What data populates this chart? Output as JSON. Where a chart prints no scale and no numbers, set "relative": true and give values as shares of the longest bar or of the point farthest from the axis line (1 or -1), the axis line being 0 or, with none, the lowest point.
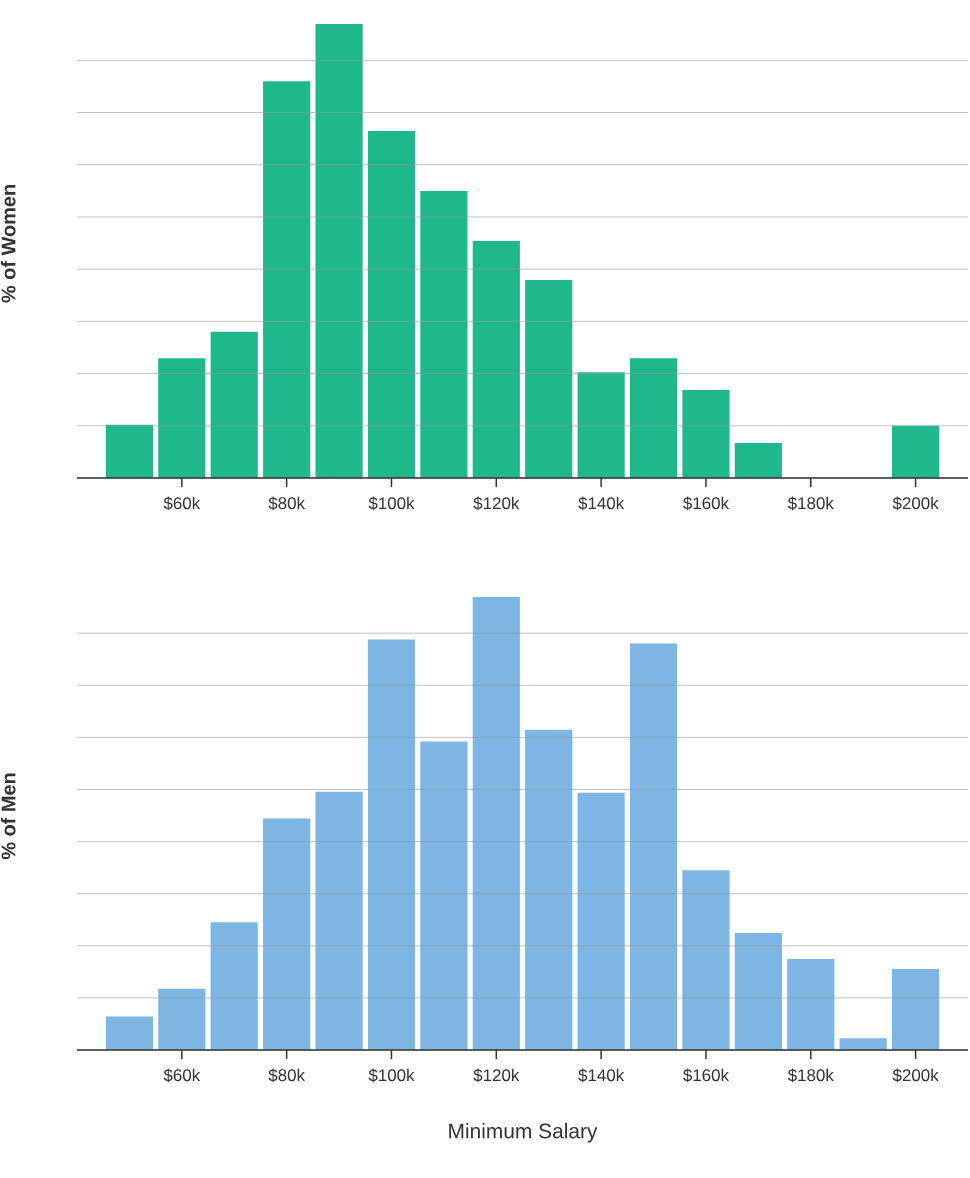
{
  "chart_data": [
    {
      "type": "bar",
      "ylabel": "% of Women",
      "relative": true,
      "grid": "y",
      "color": "#1fb88b",
      "x": [
        50,
        60,
        70,
        80,
        90,
        100,
        110,
        120,
        130,
        140,
        150,
        160,
        170,
        180,
        190,
        200
      ],
      "values": [
        0.117,
        0.264,
        0.322,
        0.874,
        1,
        0.764,
        0.632,
        0.522,
        0.436,
        0.233,
        0.264,
        0.194,
        0.077,
        0,
        0,
        0.115
      ],
      "xlim": [
        40,
        210
      ],
      "xticks": [
        {
          "value": 60,
          "label": "$60k"
        },
        {
          "value": 80,
          "label": "$80k"
        },
        {
          "value": 100,
          "label": "$100k"
        },
        {
          "value": 120,
          "label": "$120k"
        },
        {
          "value": 140,
          "label": "$140k"
        },
        {
          "value": 160,
          "label": "$160k"
        },
        {
          "value": 180,
          "label": "$180k"
        },
        {
          "value": 200,
          "label": "$200k"
        }
      ]
    },
    {
      "type": "bar",
      "ylabel": "% of Men",
      "xlabel": "Minimum Salary",
      "relative": true,
      "grid": "y",
      "color": "#7db6e2",
      "x": [
        50,
        60,
        70,
        80,
        90,
        100,
        110,
        120,
        130,
        140,
        150,
        160,
        170,
        180,
        190,
        200
      ],
      "values": [
        0.074,
        0.135,
        0.282,
        0.511,
        0.57,
        0.906,
        0.681,
        1,
        0.707,
        0.568,
        0.897,
        0.397,
        0.258,
        0.201,
        0.026,
        0.179
      ],
      "xlim": [
        40,
        210
      ],
      "xticks": [
        {
          "value": 60,
          "label": "$60k"
        },
        {
          "value": 80,
          "label": "$80k"
        },
        {
          "value": 100,
          "label": "$100k"
        },
        {
          "value": 120,
          "label": "$120k"
        },
        {
          "value": 140,
          "label": "$140k"
        },
        {
          "value": 160,
          "label": "$160k"
        },
        {
          "value": 180,
          "label": "$180k"
        },
        {
          "value": 200,
          "label": "$200k"
        }
      ]
    }
  ]
}
